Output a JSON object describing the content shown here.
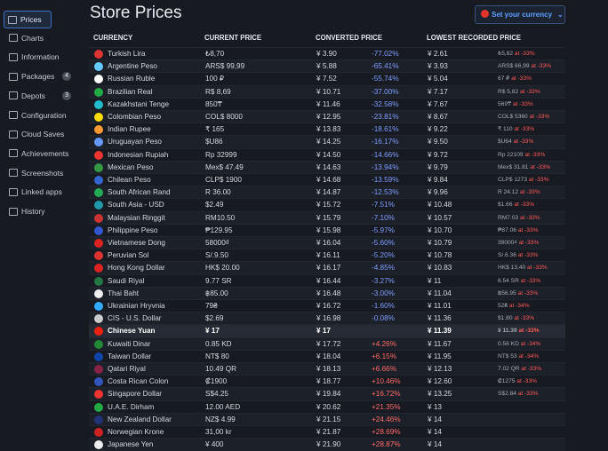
{
  "nav": [
    {
      "label": "Prices"
    },
    {
      "label": "Charts"
    },
    {
      "label": "Information"
    },
    {
      "label": "Packages",
      "count": "4"
    },
    {
      "label": "Depots",
      "count": "3"
    },
    {
      "label": "Configuration"
    },
    {
      "label": "Cloud Saves"
    },
    {
      "label": "Achievements"
    },
    {
      "label": "Screenshots"
    },
    {
      "label": "Linked apps"
    },
    {
      "label": "History"
    }
  ],
  "header": {
    "title": "Store Prices",
    "currency_button": "Set your currency"
  },
  "table": {
    "columns": [
      "CURRENCY",
      "CURRENT PRICE",
      "CONVERTED PRICE",
      "LOWEST RECORDED PRICE"
    ],
    "rows": [
      [
        "Turkish Lira",
        "₺8,70",
        "¥ 3.90",
        "-77.02%",
        "¥ 2.61",
        "₺5,82",
        "at -33%"
      ],
      [
        "Argentine Peso",
        "ARS$ 99,99",
        "¥ 5.88",
        "-65.41%",
        "¥ 3.93",
        "ARS$ 66,99",
        "at -33%"
      ],
      [
        "Russian Ruble",
        "100 ₽",
        "¥ 7.52",
        "-55.74%",
        "¥ 5.04",
        "67 ₽",
        "at -33%"
      ],
      [
        "Brazilian Real",
        "R$ 8,69",
        "¥ 10.71",
        "-37.00%",
        "¥ 7.17",
        "R$ 5,82",
        "at -33%"
      ],
      [
        "Kazakhstani Tenge",
        "850₸",
        "¥ 11.46",
        "-32.58%",
        "¥ 7.67",
        "569₸",
        "at -33%"
      ],
      [
        "Colombian Peso",
        "COL$ 8000",
        "¥ 12.95",
        "-23.81%",
        "¥ 8.67",
        "COL$ 5360",
        "at -33%"
      ],
      [
        "Indian Rupee",
        "₹ 165",
        "¥ 13.83",
        "-18.61%",
        "¥ 9.22",
        "₹ 110",
        "at -33%"
      ],
      [
        "Uruguayan Peso",
        "$U86",
        "¥ 14.25",
        "-16.17%",
        "¥ 9.50",
        "$U64",
        "at -33%"
      ],
      [
        "Indonesian Rupiah",
        "Rp 32999",
        "¥ 14.50",
        "-14.66%",
        "¥ 9.72",
        "Rp 22109",
        "at -33%"
      ],
      [
        "Mexican Peso",
        "Mex$ 47.49",
        "¥ 14.63",
        "-13.94%",
        "¥ 9.79",
        "Mex$ 31.81",
        "at -33%"
      ],
      [
        "Chilean Peso",
        "CLP$ 1900",
        "¥ 14.68",
        "-13.59%",
        "¥ 9.84",
        "CLP$ 1273",
        "at -33%"
      ],
      [
        "South African Rand",
        "R 36.00",
        "¥ 14.87",
        "-12.53%",
        "¥ 9.96",
        "R 24.12",
        "at -33%"
      ],
      [
        "South Asia - USD",
        "$2.49",
        "¥ 15.72",
        "-7.51%",
        "¥ 10.48",
        "$1.66",
        "at -33%"
      ],
      [
        "Malaysian Ringgit",
        "RM10.50",
        "¥ 15.79",
        "-7.10%",
        "¥ 10.57",
        "RM7.03",
        "at -33%"
      ],
      [
        "Philippine Peso",
        "₱129.95",
        "¥ 15.98",
        "-5.97%",
        "¥ 10.70",
        "₱87.06",
        "at -33%"
      ],
      [
        "Vietnamese Dong",
        "58000₫",
        "¥ 16.04",
        "-5.60%",
        "¥ 10.79",
        "39000₫",
        "at -33%"
      ],
      [
        "Peruvian Sol",
        "S/.9.50",
        "¥ 16.11",
        "-5.20%",
        "¥ 10.78",
        "S/.6.36",
        "at -33%"
      ],
      [
        "Hong Kong Dollar",
        "HK$ 20.00",
        "¥ 16.17",
        "-4.85%",
        "¥ 10.83",
        "HK$ 13.40",
        "at -33%"
      ],
      [
        "Saudi Riyal",
        "9.77 SR",
        "¥ 16.44",
        "-3.27%",
        "¥ 11",
        "6.54 SR",
        "at -33%"
      ],
      [
        "Thai Baht",
        "฿85.00",
        "¥ 16.48",
        "-3.00%",
        "¥ 11.04",
        "฿56.95",
        "at -33%"
      ],
      [
        "Ukrainian Hryvnia",
        "79₴",
        "¥ 16.72",
        "-1.60%",
        "¥ 11.01",
        "52₴",
        "at -34%"
      ],
      [
        "CIS - U.S. Dollar",
        "$2.69",
        "¥ 16.98",
        "-0.08%",
        "¥ 11.36",
        "$1.80",
        "at -33%"
      ],
      [
        "Chinese Yuan",
        "¥ 17",
        "¥ 17",
        null,
        "¥ 11.39",
        "¥ 11.39",
        "at -33%"
      ],
      [
        "Kuwaiti Dinar",
        "0.85 KD",
        "¥ 17.72",
        "+4.26%",
        "¥ 11.67",
        "0.56 KD",
        "at -34%"
      ],
      [
        "Taiwan Dollar",
        "NT$ 80",
        "¥ 18.04",
        "+6.15%",
        "¥ 11.95",
        "NT$ 53",
        "at -34%"
      ],
      [
        "Qatari Riyal",
        "10.49 QR",
        "¥ 18.13",
        "+6.66%",
        "¥ 12.13",
        "7.02 QR",
        "at -33%"
      ],
      [
        "Costa Rican Colon",
        "₡1900",
        "¥ 18.77",
        "+10.46%",
        "¥ 12.60",
        "₡1275",
        "at -33%"
      ],
      [
        "Singapore Dollar",
        "S$4.25",
        "¥ 19.84",
        "+16.72%",
        "¥ 13.25",
        "S$2.84",
        "at -33%"
      ],
      [
        "U.A.E. Dirham",
        "12.00 AED",
        "¥ 20.62",
        "+21.35%",
        "¥ 13",
        null,
        null
      ],
      [
        "New Zealand Dollar",
        "NZ$ 4.99",
        "¥ 21.15",
        "+24.46%",
        "¥ 14",
        null,
        null
      ],
      [
        "Norwegian Krone",
        "31,00 kr",
        "¥ 21.87",
        "+28.69%",
        "¥ 14",
        null,
        null
      ],
      [
        "Japanese Yen",
        "¥ 400",
        "¥ 21.90",
        "+28.87%",
        "¥ 14",
        null,
        null
      ]
    ]
  }
}
